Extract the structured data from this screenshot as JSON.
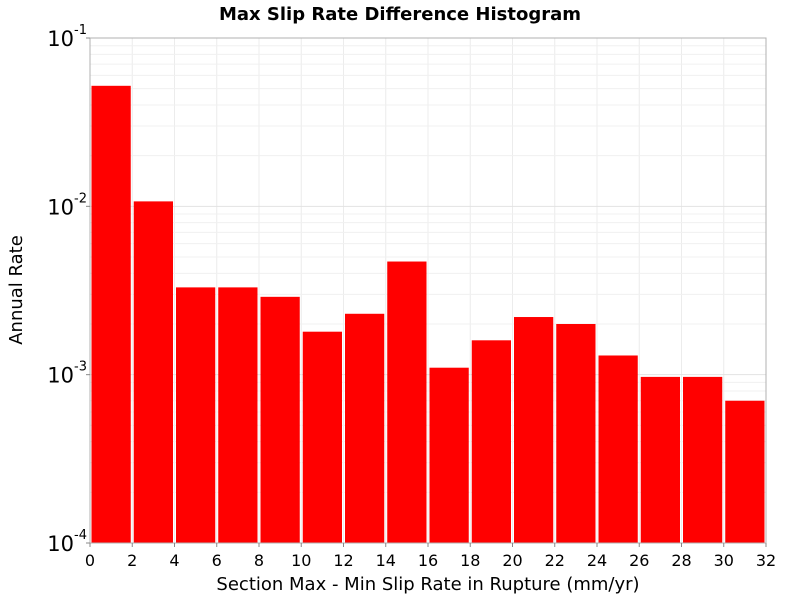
{
  "chart_data": {
    "type": "bar",
    "title": "Max Slip Rate Difference Histogram",
    "xlabel": "Section Max - Min Slip Rate in Rupture (mm/yr)",
    "ylabel": "Annual Rate",
    "y_scale": "log",
    "xlim": [
      0,
      32
    ],
    "ylim": [
      0.0001,
      0.1
    ],
    "x_ticks": [
      "0",
      "2",
      "4",
      "6",
      "8",
      "10",
      "12",
      "14",
      "16",
      "18",
      "20",
      "22",
      "24",
      "26",
      "28",
      "30",
      "32"
    ],
    "y_ticks": [
      {
        "base": "10",
        "exp": "-1"
      },
      {
        "base": "10",
        "exp": "-2"
      },
      {
        "base": "10",
        "exp": "-3"
      },
      {
        "base": "10",
        "exp": "-4"
      }
    ],
    "grid": true,
    "bar_color": "#ff0000",
    "bin_width": 2,
    "bins": [
      {
        "x_start": 0,
        "x_end": 2,
        "value": 0.052
      },
      {
        "x_start": 2,
        "x_end": 4,
        "value": 0.0107
      },
      {
        "x_start": 4,
        "x_end": 6,
        "value": 0.0033
      },
      {
        "x_start": 6,
        "x_end": 8,
        "value": 0.0033
      },
      {
        "x_start": 8,
        "x_end": 10,
        "value": 0.0029
      },
      {
        "x_start": 10,
        "x_end": 12,
        "value": 0.0018
      },
      {
        "x_start": 12,
        "x_end": 14,
        "value": 0.0023
      },
      {
        "x_start": 14,
        "x_end": 16,
        "value": 0.0047
      },
      {
        "x_start": 16,
        "x_end": 18,
        "value": 0.0011
      },
      {
        "x_start": 18,
        "x_end": 20,
        "value": 0.0016
      },
      {
        "x_start": 20,
        "x_end": 22,
        "value": 0.0022
      },
      {
        "x_start": 22,
        "x_end": 24,
        "value": 0.002
      },
      {
        "x_start": 24,
        "x_end": 26,
        "value": 0.0013
      },
      {
        "x_start": 26,
        "x_end": 28,
        "value": 0.00097
      },
      {
        "x_start": 28,
        "x_end": 30,
        "value": 0.00097
      },
      {
        "x_start": 30,
        "x_end": 32,
        "value": 0.0007
      }
    ]
  }
}
